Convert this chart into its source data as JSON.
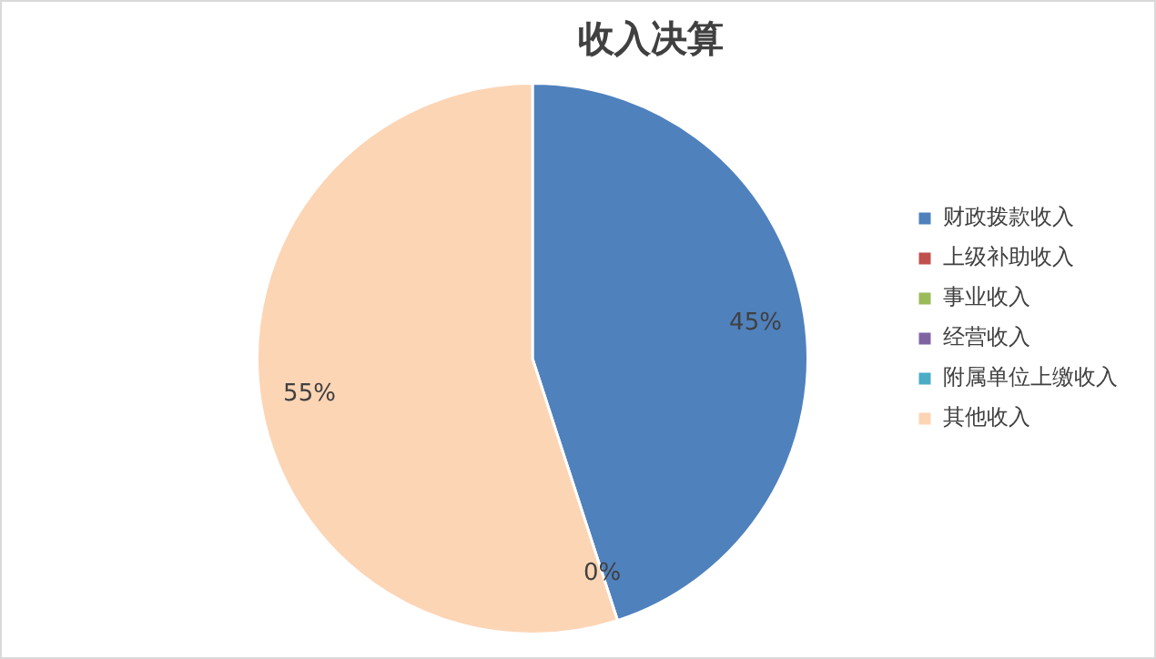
{
  "chart_data": {
    "type": "pie",
    "title": "收入决算",
    "categories": [
      "财政拨款收入",
      "上级补助收入",
      "事业收入",
      "经营收入",
      "附属单位上缴收入",
      "其他收入"
    ],
    "values": [
      45,
      0,
      0,
      0,
      0,
      55
    ],
    "value_labels": [
      "45%",
      "0%",
      null,
      null,
      null,
      "55%"
    ],
    "colors": [
      "#4f81bd",
      "#c0504d",
      "#9bbb59",
      "#8064a2",
      "#4bacc6",
      "#fcd5b5"
    ],
    "legend": "right"
  }
}
